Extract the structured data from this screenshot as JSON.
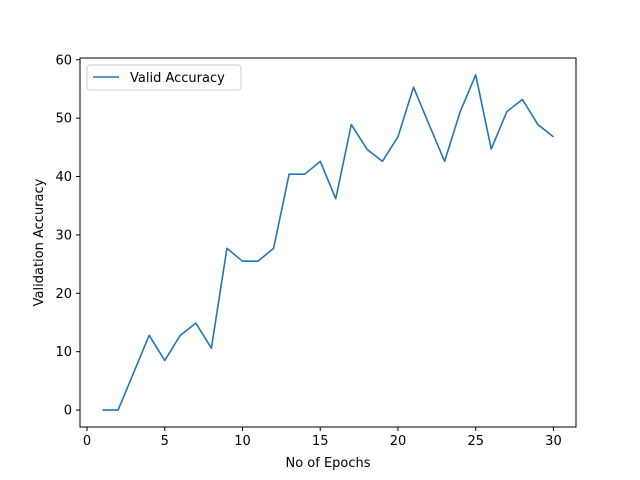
{
  "chart_data": {
    "type": "line",
    "xlabel": "No of Epochs",
    "ylabel": "Validation Accuracy",
    "xlim": [
      -0.45,
      31.45
    ],
    "ylim": [
      -2.9,
      60.3
    ],
    "x_ticks": [
      0,
      5,
      10,
      15,
      20,
      25,
      30
    ],
    "y_ticks": [
      0,
      10,
      20,
      30,
      40,
      50,
      60
    ],
    "grid": false,
    "legend_position": "upper left",
    "series": [
      {
        "name": "Valid Accuracy",
        "color": "#1f77b4",
        "x": [
          1,
          2,
          3,
          4,
          5,
          6,
          7,
          8,
          9,
          10,
          11,
          12,
          13,
          14,
          15,
          16,
          17,
          18,
          19,
          20,
          21,
          22,
          23,
          24,
          25,
          26,
          27,
          28,
          29,
          30
        ],
        "values": [
          0.0,
          0.0,
          6.4,
          12.8,
          8.5,
          12.8,
          14.9,
          10.6,
          27.7,
          25.5,
          25.5,
          27.7,
          40.4,
          40.4,
          42.6,
          36.2,
          48.9,
          44.7,
          42.6,
          46.8,
          55.3,
          48.9,
          42.6,
          51.1,
          57.4,
          44.7,
          51.1,
          53.2,
          48.9,
          46.8
        ]
      }
    ]
  }
}
